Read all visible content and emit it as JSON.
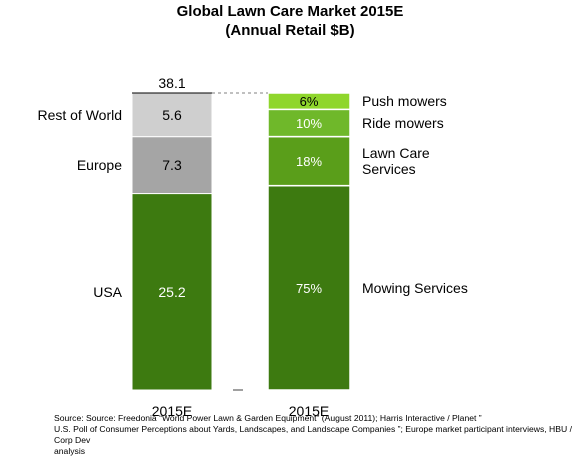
{
  "chart_data": [
    {
      "type": "bar",
      "stacked": true,
      "title": "Global Lawn Care Market 2015E",
      "subtitle": "(Annual Retail $B)",
      "categories": [
        "2015E"
      ],
      "total_label": "38.1",
      "series": [
        {
          "name": "USA",
          "values": [
            25.2
          ],
          "label": "25.2",
          "color": "#3d7a10"
        },
        {
          "name": "Europe",
          "values": [
            7.3
          ],
          "label": "7.3",
          "color": "#a5a5a5"
        },
        {
          "name": "Rest of World",
          "values": [
            5.6
          ],
          "label": "5.6",
          "color": "#cfcfcf"
        }
      ]
    },
    {
      "type": "bar",
      "stacked": true,
      "categories": [
        "2015E"
      ],
      "series": [
        {
          "name": "Mowing Services",
          "values": [
            75
          ],
          "label": "75%",
          "color": "#3d7a10"
        },
        {
          "name": "Lawn Care Services",
          "legend_lines": [
            "Lawn Care",
            "Services"
          ],
          "values": [
            18
          ],
          "label": "18%",
          "color": "#5a9e1a"
        },
        {
          "name": "Ride mowers",
          "values": [
            10
          ],
          "label": "10%",
          "color": "#6fb82a"
        },
        {
          "name": "Push mowers",
          "values": [
            6
          ],
          "label": "6%",
          "color": "#8fd62c"
        }
      ]
    }
  ],
  "source": {
    "line1": "Source: Source: Freedonia “World Power Lawn & Garden Equipment” (August 2011); Harris Interactive / Planet ”",
    "line2": "U.S. Poll of Consumer Perceptions about Yards, Landscapes, and Landscape Companies ”; Europe market participant interviews, HBU / Corp Dev",
    "line3": "analysis"
  }
}
